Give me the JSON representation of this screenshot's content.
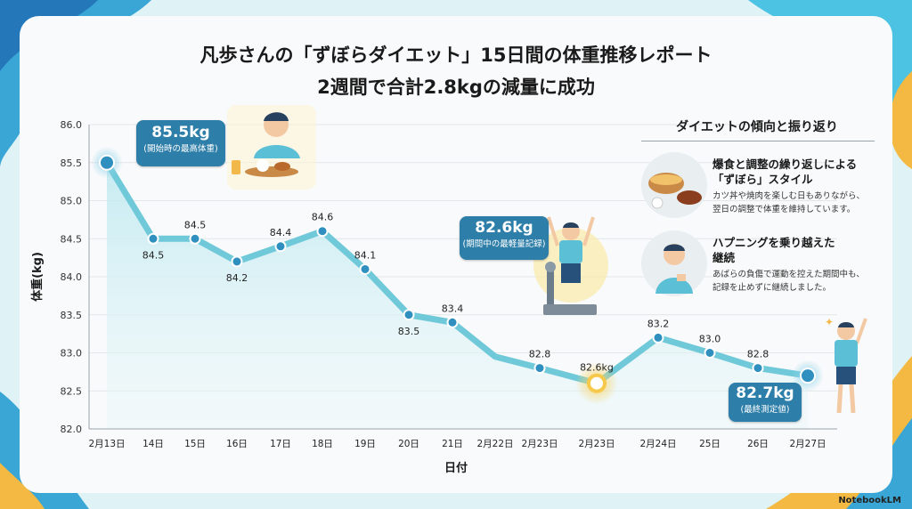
{
  "title_line1": "凡歩さんの「ずぼらダイエット」15日間の体重推移レポート",
  "title_line2": "2週間で合計2.8kgの減量に成功",
  "chart_data": {
    "type": "line",
    "ylabel": "体重(kg)",
    "xlabel": "日付",
    "ylim": [
      82.0,
      86.0
    ],
    "yticks": [
      "82.0",
      "82.5",
      "83.0",
      "83.5",
      "84.0",
      "84.5",
      "85.0",
      "85.5",
      "86.0"
    ],
    "categories": [
      "2月13日",
      "14日",
      "15日",
      "16日",
      "17日",
      "18日",
      "19日",
      "20日",
      "21日",
      "2月22日",
      "2月23日",
      "2月23日",
      "2月24日",
      "25日",
      "26日",
      "2月27日"
    ],
    "values": [
      85.5,
      84.5,
      84.5,
      84.2,
      84.4,
      84.6,
      84.1,
      83.5,
      83.4,
      82.95,
      82.8,
      82.6,
      83.2,
      83.0,
      82.8,
      82.7
    ],
    "labels": [
      "",
      "84.5",
      "84.5",
      "84.2",
      "84.4",
      "84.6",
      "84.1",
      "83.5",
      "83.4",
      "",
      "82.8",
      "82.6kg",
      "83.2",
      "83.0",
      "82.8",
      ""
    ],
    "grid": true,
    "legend": "none",
    "colors": {
      "line": "#6fc9d9",
      "marker_fill": "#2f8fbf",
      "highlight": "#f7c94a",
      "fill": "#d5f0f4"
    }
  },
  "callouts": {
    "start": {
      "value": "85.5kg",
      "note": "(開始時の最高体重)"
    },
    "lowest": {
      "value": "82.6kg",
      "note": "(期間中の最軽量記録)"
    },
    "final": {
      "value": "82.7kg",
      "note": "(最終測定値)"
    }
  },
  "review": {
    "title": "ダイエットの傾向と振り返り",
    "item1": {
      "head1": "爆食と調整の繰り返しによる",
      "head2": "「ずぼら」スタイル",
      "body1": "カツ丼や焼肉を楽しむ日もありながら、",
      "body2": "翌日の調整で体重を維持しています。"
    },
    "item2": {
      "head1": "ハプニングを乗り越えた",
      "head2": "継続",
      "body1": "あばらの負傷で運動を控えた期間中も、",
      "body2": "記録を止めずに継続しました。"
    }
  },
  "watermark": "NotebookLM"
}
